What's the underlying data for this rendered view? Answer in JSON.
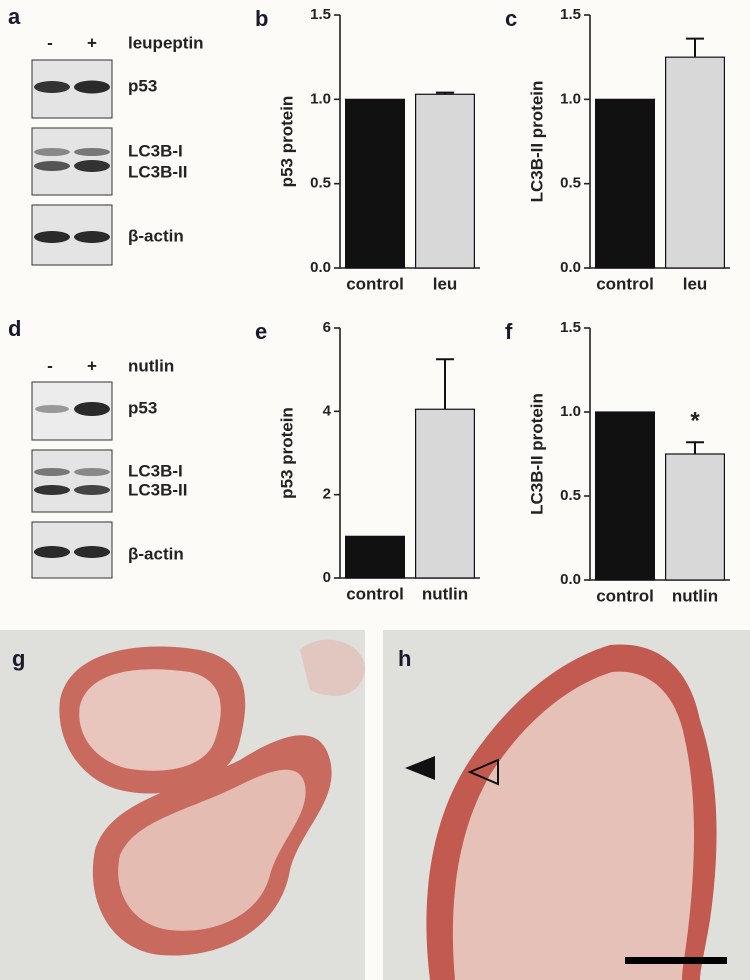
{
  "chart_data": [
    {
      "type": "bar",
      "label": "b",
      "ylabel": "p53 protein",
      "categories": [
        "control",
        "leu"
      ],
      "values": [
        1.0,
        1.03
      ],
      "errors": [
        null,
        0.01
      ],
      "colors": [
        "#111111",
        "#d8d8d8"
      ],
      "ylim": [
        0,
        1.5
      ],
      "yticks": [
        {
          "value": 0,
          "label": "0.0"
        },
        0.5,
        {
          "value": 1,
          "label": "1.0"
        },
        1.5
      ]
    },
    {
      "type": "bar",
      "label": "c",
      "ylabel": "LC3B-II protein",
      "categories": [
        "control",
        "leu"
      ],
      "values": [
        1.0,
        1.25
      ],
      "errors": [
        null,
        0.11
      ],
      "colors": [
        "#111111",
        "#d8d8d8"
      ],
      "ylim": [
        0,
        1.5
      ],
      "yticks": [
        {
          "value": 0,
          "label": "0.0"
        },
        0.5,
        {
          "value": 1,
          "label": "1.0"
        },
        1.5
      ]
    },
    {
      "type": "bar",
      "label": "e",
      "ylabel": "p53 protein",
      "categories": [
        "control",
        "nutlin"
      ],
      "values": [
        1.0,
        4.05
      ],
      "errors": [
        null,
        1.2
      ],
      "colors": [
        "#111111",
        "#d8d8d8"
      ],
      "ylim": [
        0,
        6
      ],
      "yticks": [
        0,
        2,
        4,
        6
      ]
    },
    {
      "type": "bar",
      "label": "f",
      "ylabel": "LC3B-II protein",
      "categories": [
        "control",
        "nutlin"
      ],
      "values": [
        1.0,
        0.75
      ],
      "errors": [
        null,
        0.07
      ],
      "colors": [
        "#111111",
        "#d8d8d8"
      ],
      "annotations": [
        null,
        "*"
      ],
      "ylim": [
        0,
        1.5
      ],
      "yticks": [
        {
          "value": 0,
          "label": "0.0"
        },
        0.5,
        {
          "value": 1,
          "label": "1.0"
        },
        1.5
      ]
    }
  ],
  "blots": [
    {
      "label": "a",
      "lanes": [
        "-",
        "+"
      ],
      "treatment": "leupeptin",
      "bands": [
        "p53",
        "LC3B-I",
        "LC3B-II",
        "β-actin"
      ]
    },
    {
      "label": "d",
      "lanes": [
        "-",
        "+"
      ],
      "treatment": "nutlin",
      "bands": [
        "p53",
        "LC3B-I",
        "LC3B-II",
        "β-actin"
      ]
    }
  ],
  "micrographs": [
    {
      "label": "g"
    },
    {
      "label": "h"
    }
  ]
}
